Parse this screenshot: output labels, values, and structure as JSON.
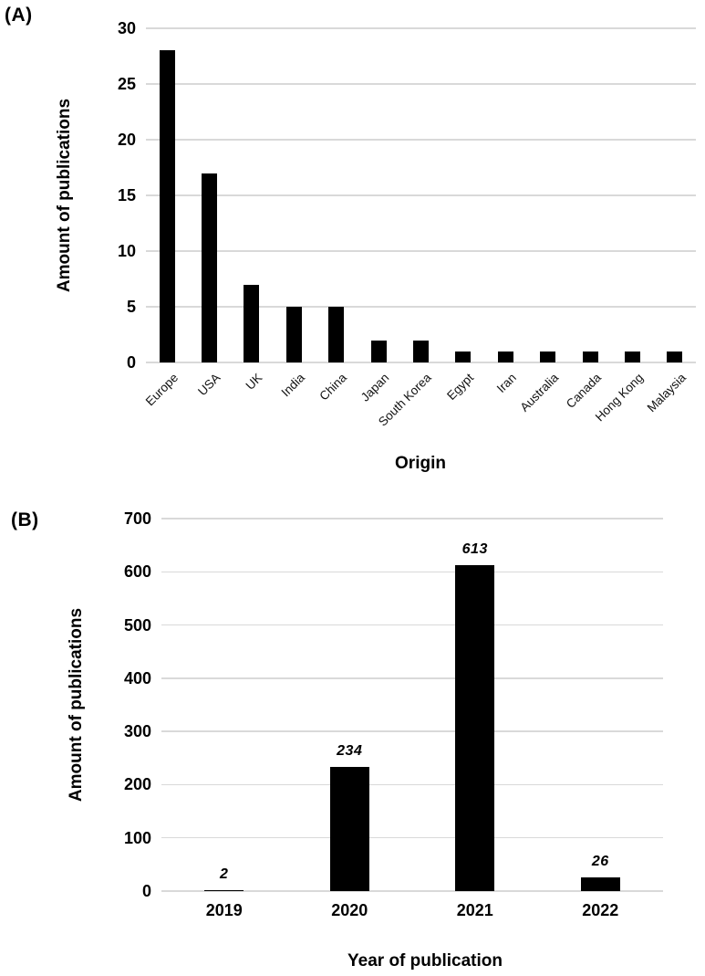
{
  "panels": [
    {
      "label": "(A)",
      "ylabel": "Amount of publications",
      "xlabel": "Origin"
    },
    {
      "label": "(B)",
      "ylabel": "Amount of publications",
      "xlabel": "Year of publication"
    }
  ],
  "colors": {
    "bar": "#000000",
    "gridline": "#d9d9d9",
    "text": "#000000",
    "background": "#ffffff"
  },
  "chart_data": [
    {
      "type": "bar",
      "panel": "A",
      "title": "",
      "categories": [
        "Europe",
        "USA",
        "UK",
        "India",
        "China",
        "Japan",
        "South Korea",
        "Egypt",
        "Iran",
        "Australia",
        "Canada",
        "Hong Kong",
        "Malaysia"
      ],
      "values": [
        28,
        17,
        7,
        5,
        5,
        2,
        2,
        1,
        1,
        1,
        1,
        1,
        1
      ],
      "xlabel": "Origin",
      "ylabel": "Amount of publications",
      "ylim": [
        0,
        30
      ],
      "yticks": [
        0,
        5,
        10,
        15,
        20,
        25,
        30
      ],
      "grid": true,
      "legend_position": "none",
      "bar_color": "#000000",
      "gridline_color": "#d9d9d9",
      "category_label_rotation_deg": -45,
      "data_labels": null
    },
    {
      "type": "bar",
      "panel": "B",
      "title": "",
      "categories": [
        "2019",
        "2020",
        "2021",
        "2022"
      ],
      "values": [
        2,
        234,
        613,
        26
      ],
      "xlabel": "Year of publication",
      "ylabel": "Amount of publications",
      "ylim": [
        0,
        700
      ],
      "yticks": [
        0,
        100,
        200,
        300,
        400,
        500,
        600,
        700
      ],
      "grid": true,
      "legend_position": "none",
      "bar_color": "#000000",
      "gridline_color": "#d9d9d9",
      "category_label_rotation_deg": 0,
      "data_labels": [
        "2",
        "234",
        "613",
        "26"
      ]
    }
  ]
}
